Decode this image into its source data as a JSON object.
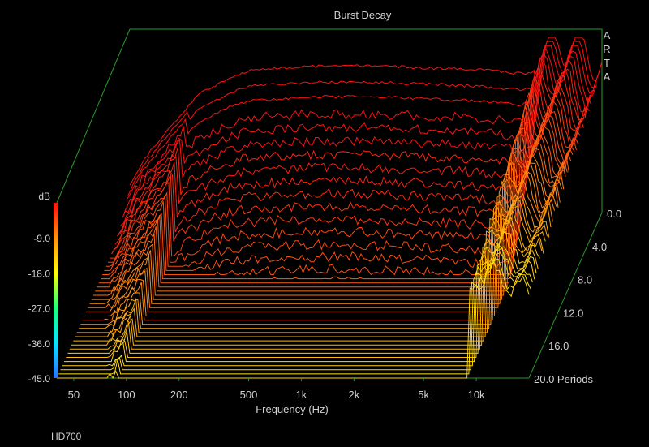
{
  "chart_data": {
    "type": "waterfall",
    "title": "Burst Decay",
    "xlabel": "Frequency (Hz)",
    "ylabel": "dB",
    "zlabel": "Periods",
    "x_tick_labels": [
      "50",
      "100",
      "200",
      "500",
      "1k",
      "2k",
      "5k",
      "10k"
    ],
    "x_tick_values": [
      50,
      100,
      200,
      500,
      1000,
      2000,
      5000,
      10000
    ],
    "xlim": [
      40,
      20000
    ],
    "x_scale": "log",
    "y_tick_labels": [
      "-9.0",
      "-18.0",
      "-27.0",
      "-36.0",
      "-45.0"
    ],
    "ylim": [
      -45,
      0
    ],
    "z_tick_labels": [
      "0.0",
      "4.0",
      "8.0",
      "12.0",
      "16.0",
      "20.0"
    ],
    "z_tick_values": [
      0,
      4,
      8,
      12,
      16,
      20
    ],
    "zlim": [
      0,
      20
    ],
    "slice_count": 41,
    "surface_envelope_db": [
      [
        40,
        -38
      ],
      [
        50,
        -30
      ],
      [
        70,
        -22
      ],
      [
        100,
        -14
      ],
      [
        150,
        -10
      ],
      [
        200,
        -8
      ],
      [
        500,
        -7
      ],
      [
        1000,
        -7
      ],
      [
        2000,
        -7.5
      ],
      [
        4000,
        -8
      ],
      [
        7000,
        -9
      ],
      [
        9000,
        -8
      ],
      [
        10000,
        -2
      ],
      [
        13000,
        -1
      ],
      [
        16000,
        -4
      ],
      [
        20000,
        -6
      ]
    ],
    "colormap": [
      "#3070ff",
      "#10e0ff",
      "#20ff80",
      "#ffff10",
      "#ff9010",
      "#ff1010"
    ],
    "watermark": "ARTA",
    "footer_note": "HD700"
  }
}
